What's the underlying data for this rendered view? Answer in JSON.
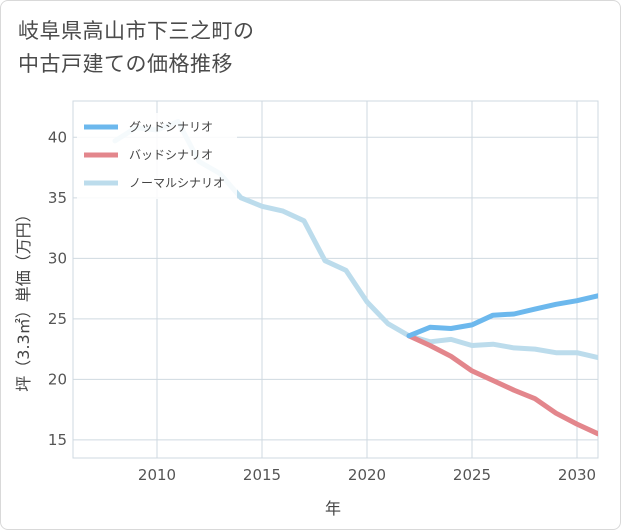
{
  "title_lines": [
    "岐阜県高山市下三之町の",
    "中古戸建ての価格推移"
  ],
  "chart_data": {
    "type": "line",
    "xlabel": "年",
    "ylabel": "坪（3.3㎡）単価（万円）",
    "xlim": [
      2006,
      2031
    ],
    "ylim": [
      13.5,
      43
    ],
    "x_ticks": [
      2010,
      2015,
      2020,
      2025,
      2030
    ],
    "y_ticks": [
      15,
      20,
      25,
      30,
      35,
      40
    ],
    "grid": true,
    "legend_position": "top-left",
    "series": [
      {
        "name": "グッドシナリオ",
        "color": "#6cb8ed",
        "x": [
          2022,
          2023,
          2024,
          2025,
          2026,
          2027,
          2028,
          2029,
          2030,
          2031
        ],
        "y": [
          23.6,
          24.3,
          24.2,
          24.5,
          25.3,
          25.4,
          25.8,
          26.2,
          26.5,
          26.9
        ]
      },
      {
        "name": "バッドシナリオ",
        "color": "#e3868c",
        "x": [
          2022,
          2023,
          2024,
          2025,
          2026,
          2027,
          2028,
          2029,
          2030,
          2031
        ],
        "y": [
          23.6,
          22.8,
          21.9,
          20.7,
          19.9,
          19.1,
          18.4,
          17.2,
          16.3,
          15.5
        ]
      },
      {
        "name": "ノーマルシナリオ",
        "color": "#bcdcec",
        "x": [
          2008,
          2009,
          2010,
          2011,
          2012,
          2013,
          2014,
          2015,
          2016,
          2017,
          2018,
          2019,
          2020,
          2021,
          2022,
          2023,
          2024,
          2025,
          2026,
          2027,
          2028,
          2029,
          2030,
          2031
        ],
        "y": [
          39.7,
          40.8,
          40.6,
          41.3,
          38.0,
          37.0,
          35.0,
          34.3,
          33.9,
          33.1,
          29.8,
          29.0,
          26.4,
          24.6,
          23.6,
          23.1,
          23.3,
          22.8,
          22.9,
          22.6,
          22.5,
          22.2,
          22.2,
          21.8
        ]
      }
    ]
  }
}
